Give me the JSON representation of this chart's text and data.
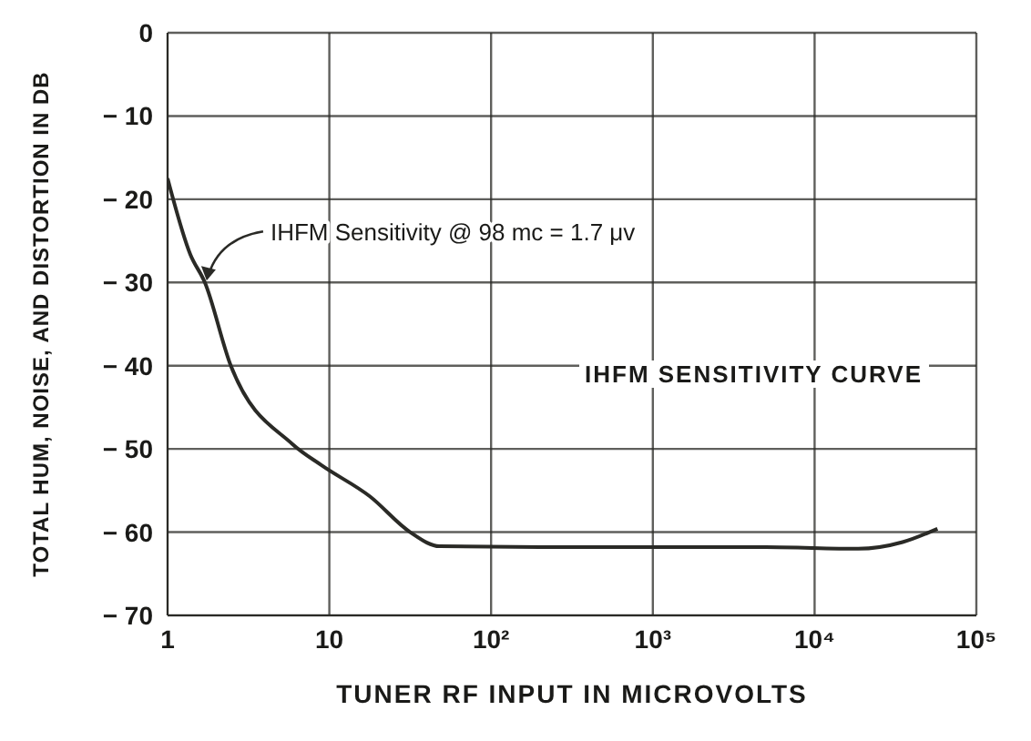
{
  "chart_data": {
    "type": "line",
    "xlabel": "TUNER RF INPUT IN MICROVOLTS",
    "ylabel": "TOTAL HUM, NOISE, AND DISTORTION IN DB",
    "x": [
      1,
      1.38,
      1.7,
      2.46,
      5.9,
      9,
      17.8,
      31.6,
      48,
      200,
      1000,
      5000,
      18600,
      35000,
      57500
    ],
    "series": [
      {
        "color": "#2a2a26",
        "values": [
          -17.5,
          -26.6,
          -30,
          -40,
          -49.4,
          -52,
          -55.7,
          -60,
          -61.7,
          -61.8,
          -61.8,
          -61.8,
          -62,
          -61.2,
          -59.6
        ]
      }
    ],
    "log": "x",
    "xlim": [
      1,
      100000
    ],
    "xticks": [
      1,
      10,
      {
        "value": 100,
        "label": "10²"
      },
      {
        "value": 1000,
        "label": "10³"
      },
      {
        "value": 10000,
        "label": "10⁴"
      },
      {
        "value": 100000,
        "label": "10⁵"
      }
    ],
    "ylim": [
      -70,
      0
    ],
    "yticks": [
      0,
      {
        "value": -10,
        "label": "− 10"
      },
      {
        "value": -20,
        "label": "− 20"
      },
      {
        "value": -30,
        "label": "− 30"
      },
      {
        "value": -40,
        "label": "− 40"
      },
      {
        "value": -50,
        "label": "− 50"
      },
      {
        "value": -60,
        "label": "− 60"
      },
      {
        "value": -70,
        "label": "− 70"
      }
    ],
    "grid": true,
    "line_style": "solid",
    "annotations": [
      {
        "text": "IHFM Sensitivity @ 98 mc = 1.7 μv",
        "x": 1.7,
        "y": -30
      },
      "IHFM SENSITIVITY CURVE"
    ]
  }
}
